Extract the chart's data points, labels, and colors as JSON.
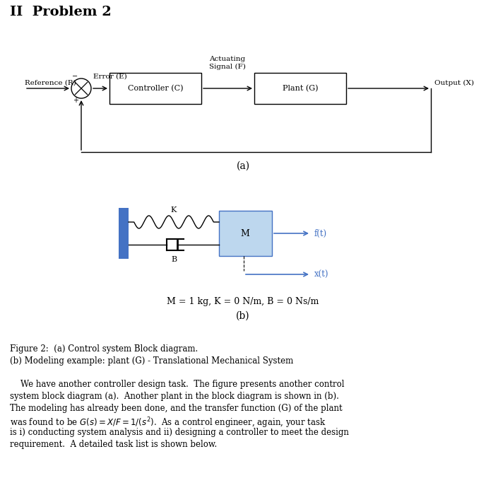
{
  "title": "II  Problem 2",
  "fig_width": 6.88,
  "fig_height": 7.0,
  "bg_color": "#ffffff",
  "block_diagram": {
    "ref_label": "Reference (R)",
    "error_label": "Error (E)",
    "actuating_label": "Actuating\nSignal (F)",
    "output_label": "Output (X)",
    "controller_label": "Controller (C)",
    "plant_label": "Plant (G)",
    "sub_label": "(a)"
  },
  "mech_diagram": {
    "K_label": "K",
    "B_label": "B",
    "M_label": "M",
    "ft_label": "f(t)",
    "xt_label": "x(t)",
    "params_label": "M = 1 kg, K = 0 N/m, B = 0 Ns/m",
    "sub_label": "(b)",
    "wall_color": "#4472C4",
    "box_color": "#BDD7EE",
    "box_edge_color": "#4472C4",
    "arrow_color": "#4472C4"
  },
  "figure_caption_line1": "Figure 2:  (a) Control system Block diagram.",
  "figure_caption_line2": "(b) Modeling example: plant (G) - Translational Mechanical System",
  "body_line1": "    We have another controller design task.  The figure presents another control",
  "body_line2": "system block diagram (a).  Another plant in the block diagram is shown in (b).",
  "body_line3": "The modeling has already been done, and the transfer function (G) of the plant",
  "body_line4": "was found to be $G(s) = X/F = 1/(s^2)$.  As a control engineer, again, your task",
  "body_line5": "is i) conducting system analysis and ii) designing a controller to meet the design",
  "body_line6": "requirement.  A detailed task list is shown below."
}
